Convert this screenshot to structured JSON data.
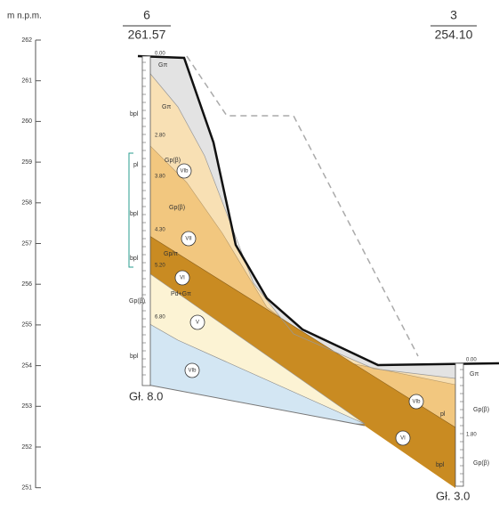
{
  "axis": {
    "unit": "m n.p.m.",
    "labels": [
      "262",
      "261",
      "260",
      "259",
      "258",
      "257",
      "256",
      "255",
      "254",
      "253",
      "252",
      "251"
    ]
  },
  "boreholes": [
    {
      "number": "6",
      "elevation": "261.57",
      "depth": "Gł. 8.0"
    },
    {
      "number": "3",
      "elevation": "254.10",
      "depth": "Gł. 3.0"
    }
  ],
  "layer_labels": [
    "Gπ",
    "Gπ",
    "Gp(β)",
    "Gp(β)",
    "Gp/π",
    "Pd+Gπ",
    "bpl",
    "pl",
    "bpl",
    "bpl",
    "Gp(β)",
    "bpl",
    "Gπ",
    "Gp(β)",
    "Gp(β)",
    "pl",
    "bpl"
  ],
  "depth_marks": [
    "0.00",
    "2.80",
    "3.80",
    "4.30",
    "5.20",
    "6.80",
    "0.00",
    "1.80"
  ],
  "circle_labels": [
    "VIb",
    "VII",
    "VI",
    "V",
    "VIb",
    "VIb",
    "VI"
  ]
}
